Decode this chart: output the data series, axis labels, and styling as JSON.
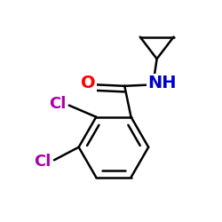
{
  "background": "#ffffff",
  "bond_color": "#000000",
  "bond_width": 1.8,
  "atoms": {
    "O": {
      "color": "#ff0000",
      "fontsize": 14,
      "fontweight": "bold"
    },
    "NH": {
      "color": "#0000cc",
      "fontsize": 14,
      "fontweight": "bold"
    },
    "Cl": {
      "color": "#aa00aa",
      "fontsize": 13,
      "fontweight": "bold"
    }
  },
  "figsize": [
    2.5,
    2.5
  ],
  "dpi": 100,
  "xlim": [
    -0.1,
    1.0
  ],
  "ylim": [
    -0.85,
    0.85
  ]
}
